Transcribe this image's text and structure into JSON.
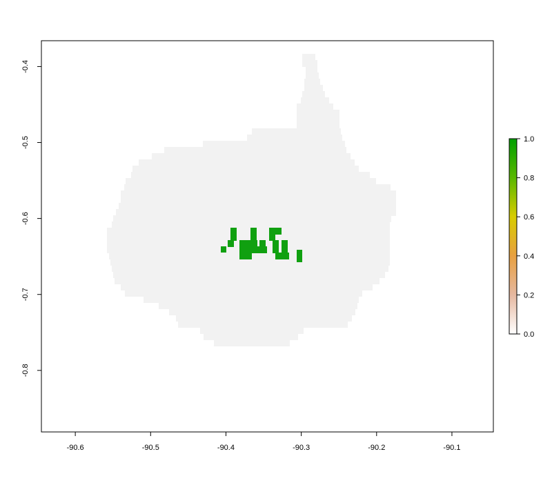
{
  "chart_data": {
    "type": "heatmap",
    "title": "",
    "xlabel": "",
    "ylabel": "",
    "xlim": [
      -90.645,
      -90.045
    ],
    "ylim": [
      -0.881,
      -0.366
    ],
    "x_ticks": [
      {
        "value": -90.6,
        "label": "-90.6"
      },
      {
        "value": -90.5,
        "label": "-90.5"
      },
      {
        "value": -90.4,
        "label": "-90.4"
      },
      {
        "value": -90.3,
        "label": "-90.3"
      },
      {
        "value": -90.2,
        "label": "-90.2"
      },
      {
        "value": -90.1,
        "label": "-90.1"
      }
    ],
    "y_ticks": [
      {
        "value": -0.4,
        "label": "-0.4"
      },
      {
        "value": -0.5,
        "label": "-0.5"
      },
      {
        "value": -0.6,
        "label": "-0.6"
      },
      {
        "value": -0.7,
        "label": "-0.7"
      },
      {
        "value": -0.8,
        "label": "-0.8"
      }
    ],
    "legend": {
      "placement": "right",
      "range": [
        0,
        1
      ],
      "labels": [
        "0.0",
        "0.2",
        "0.4",
        "0.6",
        "0.8",
        "1.0"
      ],
      "colors": [
        "#ffffff",
        "#e6b8a0",
        "#e8a040",
        "#d8cc00",
        "#5ab800",
        "#00a000"
      ]
    },
    "grid": false,
    "colors": {
      "land": "#f2f2f2",
      "high": "#10a010",
      "frame": "#000000"
    }
  }
}
